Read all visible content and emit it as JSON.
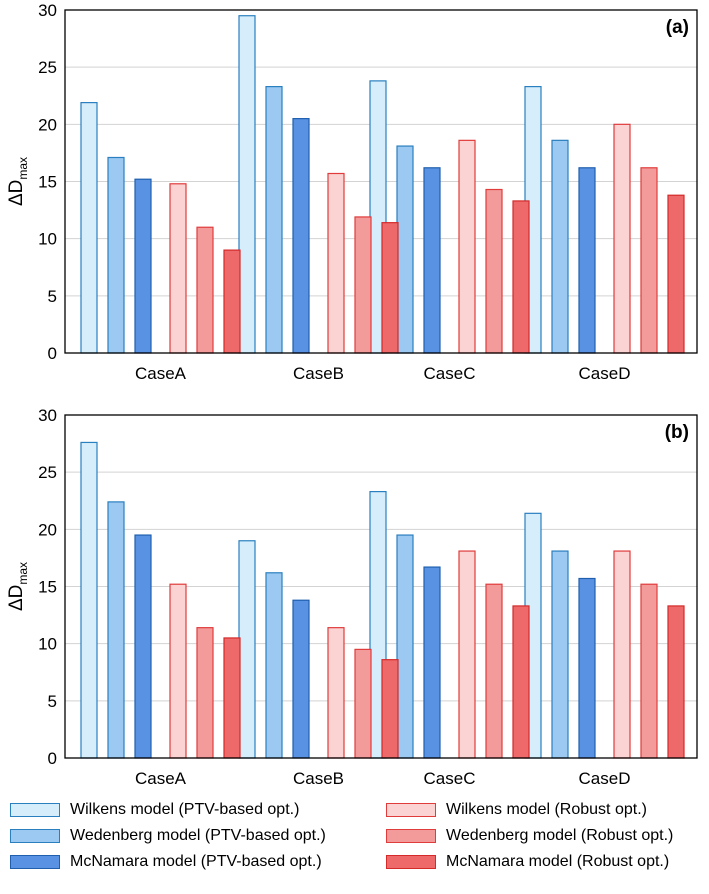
{
  "chart_data": [
    {
      "type": "bar",
      "panel_label": "(a)",
      "ylabel_main": "ΔD",
      "ylabel_sub": "max",
      "xlabel": "",
      "ylim": [
        0,
        30
      ],
      "yticks": [
        "0",
        "5",
        "10",
        "15",
        "20",
        "25",
        "30"
      ],
      "grid": true,
      "categories": [
        "CaseA",
        "CaseB",
        "CaseC",
        "CaseD"
      ],
      "series": [
        {
          "name": "Wilkens model (PTV-based opt.)",
          "values": [
            21.9,
            29.5,
            23.8,
            23.3
          ]
        },
        {
          "name": "Wedenberg model (PTV-based opt.)",
          "values": [
            17.1,
            23.3,
            18.1,
            18.6
          ]
        },
        {
          "name": "McNamara model (PTV-based opt.)",
          "values": [
            15.2,
            20.5,
            16.2,
            16.2
          ]
        },
        {
          "name": "Wilkens model (Robust opt.)",
          "values": [
            14.8,
            15.7,
            18.6,
            20.0
          ]
        },
        {
          "name": "Wedenberg model (Robust opt.)",
          "values": [
            11.0,
            11.9,
            14.3,
            16.2
          ]
        },
        {
          "name": "McNamara model (Robust opt.)",
          "values": [
            9.0,
            11.4,
            13.3,
            13.8
          ]
        }
      ]
    },
    {
      "type": "bar",
      "panel_label": "(b)",
      "ylabel_main": "ΔD",
      "ylabel_sub": "max",
      "xlabel": "",
      "ylim": [
        0,
        30
      ],
      "yticks": [
        "0",
        "5",
        "10",
        "15",
        "20",
        "25",
        "30"
      ],
      "grid": true,
      "categories": [
        "CaseA",
        "CaseB",
        "CaseC",
        "CaseD"
      ],
      "series": [
        {
          "name": "Wilkens model (PTV-based opt.)",
          "values": [
            27.6,
            19.0,
            23.3,
            21.4
          ]
        },
        {
          "name": "Wedenberg model (PTV-based opt.)",
          "values": [
            22.4,
            16.2,
            19.5,
            18.1
          ]
        },
        {
          "name": "McNamara model (PTV-based opt.)",
          "values": [
            19.5,
            13.8,
            16.7,
            15.7
          ]
        },
        {
          "name": "Wilkens model (Robust opt.)",
          "values": [
            15.2,
            11.4,
            18.1,
            18.1
          ]
        },
        {
          "name": "Wedenberg model (Robust opt.)",
          "values": [
            11.4,
            9.5,
            15.2,
            15.2
          ]
        },
        {
          "name": "McNamara model (Robust opt.)",
          "values": [
            10.5,
            8.6,
            13.3,
            13.3
          ]
        }
      ]
    }
  ],
  "legend": {
    "items": [
      {
        "label": "Wilkens model (PTV-based opt.)",
        "fill": "#d6eefb",
        "stroke": "#2a7fbf"
      },
      {
        "label": "Wedenberg model (PTV-based opt.)",
        "fill": "#9cc9f2",
        "stroke": "#2a7fbf"
      },
      {
        "label": "McNamara model (PTV-based opt.)",
        "fill": "#5a92e3",
        "stroke": "#1f5fae"
      },
      {
        "label": "Wilkens model (Robust opt.)",
        "fill": "#fbd3d3",
        "stroke": "#e03c3c"
      },
      {
        "label": "Wedenberg model (Robust opt.)",
        "fill": "#f39a9a",
        "stroke": "#e03c3c"
      },
      {
        "label": "McNamara model (Robust opt.)",
        "fill": "#ee6a6a",
        "stroke": "#d42a2a"
      }
    ]
  },
  "colors": {
    "grid": "#d3d3d3",
    "axis": "#000000"
  }
}
